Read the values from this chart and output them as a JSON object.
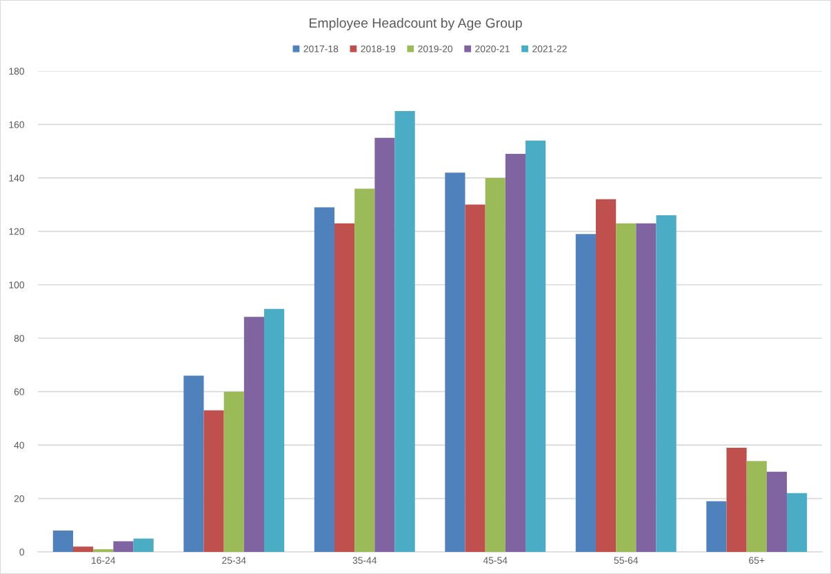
{
  "chart_data": {
    "type": "bar",
    "title": "Employee Headcount by Age Group",
    "categories": [
      "16-24",
      "25-34",
      "35-44",
      "45-54",
      "55-64",
      "65+"
    ],
    "series": [
      {
        "name": "2017-18",
        "color": "#4f81bd",
        "values": [
          8,
          66,
          129,
          142,
          119,
          19
        ]
      },
      {
        "name": "2018-19",
        "color": "#c0504d",
        "values": [
          2,
          53,
          123,
          130,
          132,
          39
        ]
      },
      {
        "name": "2019-20",
        "color": "#9bbb59",
        "values": [
          1,
          60,
          136,
          140,
          123,
          34
        ]
      },
      {
        "name": "2020-21",
        "color": "#8064a2",
        "values": [
          4,
          88,
          155,
          149,
          123,
          30
        ]
      },
      {
        "name": "2021-22",
        "color": "#4bacc6",
        "values": [
          5,
          91,
          165,
          154,
          126,
          22
        ]
      }
    ],
    "ylim": [
      0,
      180
    ],
    "yticks": [
      0,
      20,
      40,
      60,
      80,
      100,
      120,
      140,
      160,
      180
    ],
    "grid": "y",
    "legend": "top"
  }
}
